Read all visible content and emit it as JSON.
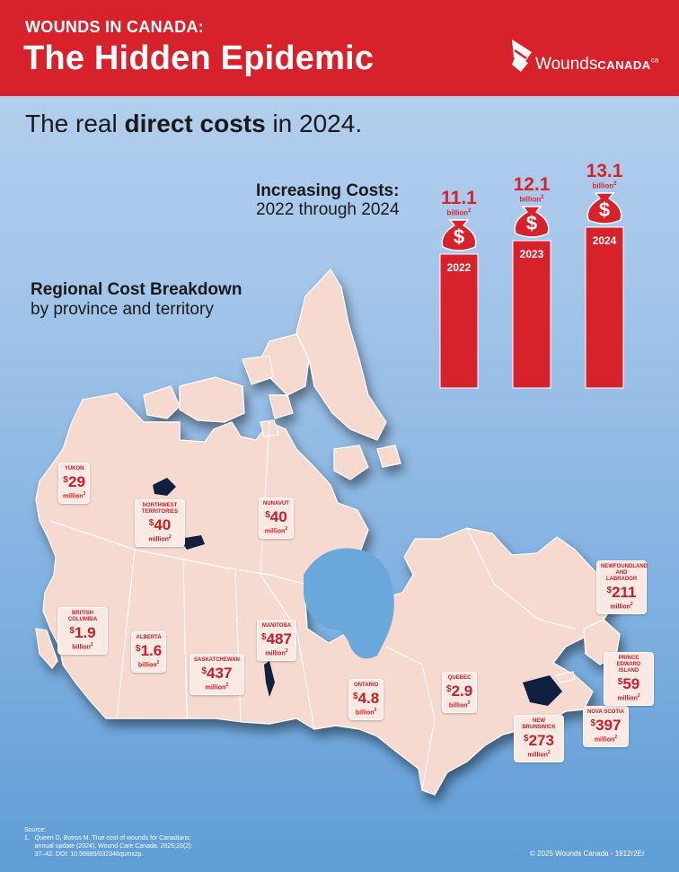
{
  "header": {
    "kicker": "WOUNDS IN CANADA:",
    "title": "The Hidden Epidemic",
    "logo_word": "Wounds",
    "logo_word2": "CANADA",
    "logo_sup": "ca"
  },
  "subtitle": {
    "pre": "The real ",
    "bold": "direct costs",
    "post": " in 2024."
  },
  "increasing": {
    "title": "Increasing Costs:",
    "subtitle": "2022 through 2024"
  },
  "regional": {
    "title": "Regional Cost Breakdown",
    "subtitle": "by province and territory"
  },
  "colors": {
    "brand_red": "#d7222b",
    "label_bg": "#fbe9e4",
    "map_fill": "#f6d9cf",
    "background_top": "#b9d2ee",
    "background_bottom": "#5f9dd6"
  },
  "icons": [
    "money-bag-icon",
    "wounds-canada-logo-icon"
  ],
  "chart_data": [
    {
      "type": "bar",
      "title": "Increasing Costs: 2022 through 2024",
      "categories": [
        "2022",
        "2023",
        "2024"
      ],
      "values": [
        11.1,
        12.1,
        13.1
      ],
      "value_labels": [
        "11.1",
        "12.1",
        "13.1"
      ],
      "unit_labels": [
        "billion",
        "billion",
        "billion"
      ],
      "footnote_marker": "2"
    },
    {
      "type": "table",
      "title": "Regional Cost Breakdown by province and territory",
      "regions": [
        {
          "name": "YUKON",
          "amount": "29",
          "unit": "million"
        },
        {
          "name": "NORTHWEST TERRITORIES",
          "amount": "40",
          "unit": "million"
        },
        {
          "name": "NUNAVUT",
          "amount": "40",
          "unit": "million"
        },
        {
          "name": "BRITISH COLUMBIA",
          "amount": "1.9",
          "unit": "billion"
        },
        {
          "name": "ALBERTA",
          "amount": "1.6",
          "unit": "billion"
        },
        {
          "name": "SASKATCHEWAN",
          "amount": "437",
          "unit": "million"
        },
        {
          "name": "MANITOBA",
          "amount": "487",
          "unit": "million"
        },
        {
          "name": "ONTARIO",
          "amount": "4.8",
          "unit": "billion"
        },
        {
          "name": "QUEBEC",
          "amount": "2.9",
          "unit": "billion"
        },
        {
          "name": "NEW BRUNSWICK",
          "amount": "273",
          "unit": "million"
        },
        {
          "name": "NOVA SCOTIA",
          "amount": "397",
          "unit": "million"
        },
        {
          "name": "PRINCE EDWARD ISLAND",
          "amount": "59",
          "unit": "million"
        },
        {
          "name": "NEWFOUNDLAND AND LABRADOR",
          "amount": "211",
          "unit": "million"
        }
      ]
    }
  ],
  "source": {
    "heading": "Source:",
    "line1": "1.   Queen D, Botros M. True cost of wounds for Canadians:",
    "line2": "      annual update (2024). Wound Care Canada. 2025;23(2):",
    "line3": "      37–42. DOI: 10.56885/032346qumxzp."
  },
  "copyright": "© 2025 Wounds Canada - 1912r2Er"
}
